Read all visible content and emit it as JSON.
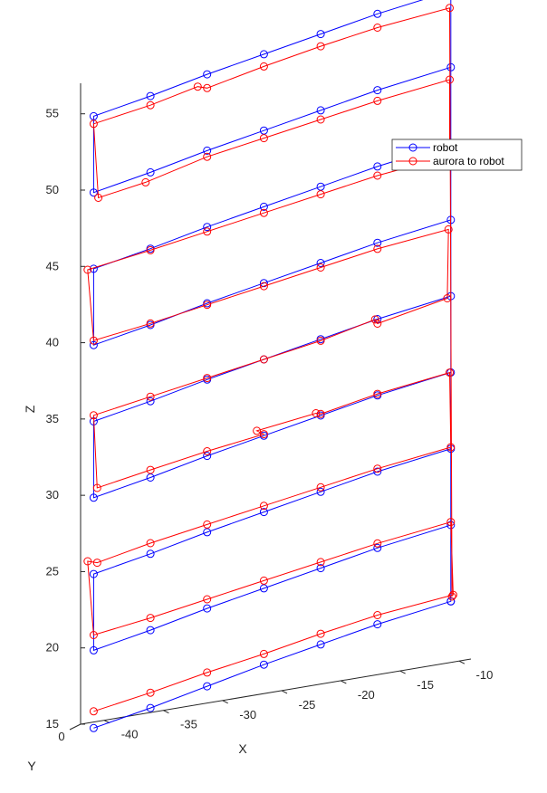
{
  "chart_data": {
    "type": "line",
    "projection": "3d",
    "xlabel": "X",
    "ylabel": "Y",
    "zlabel": "Z",
    "xlim": [
      -42,
      -9
    ],
    "zlim": [
      15,
      57
    ],
    "x_ticks": [
      -40,
      -35,
      -30,
      -25,
      -20,
      -15,
      -10
    ],
    "x_tick_labels": [
      "-40",
      "-35",
      "-30",
      "-25",
      "-20",
      "-15",
      "-10"
    ],
    "y_ticks": [
      0
    ],
    "y_tick_labels": [
      "0"
    ],
    "z_ticks": [
      15,
      20,
      25,
      30,
      35,
      40,
      45,
      50,
      55
    ],
    "z_tick_labels": [
      "15",
      "20",
      "25",
      "30",
      "35",
      "40",
      "45",
      "50",
      "55"
    ],
    "grid": false,
    "legend_position": "upper-right",
    "legend": [
      {
        "name": "robot",
        "color": "#0000ff"
      },
      {
        "name": "aurora to robot",
        "color": "#ff0000"
      }
    ],
    "series": [
      {
        "name": "robot",
        "color": "#0000ff",
        "marker": "circle",
        "points": [
          {
            "x": -40.9,
            "z": 14.6
          },
          {
            "x": -36.1,
            "z": 15.3
          },
          {
            "x": -31.3,
            "z": 16.1
          },
          {
            "x": -26.5,
            "z": 16.9
          },
          {
            "x": -21.7,
            "z": 17.6
          },
          {
            "x": -16.9,
            "z": 18.3
          },
          {
            "x": -10.7,
            "z": 19.0
          },
          {
            "x": -10.7,
            "z": 24.0
          },
          {
            "x": -16.9,
            "z": 23.3
          },
          {
            "x": -21.7,
            "z": 22.6
          },
          {
            "x": -26.5,
            "z": 21.9
          },
          {
            "x": -31.3,
            "z": 21.2
          },
          {
            "x": -36.1,
            "z": 20.4
          },
          {
            "x": -40.9,
            "z": 19.7
          },
          {
            "x": -40.9,
            "z": 24.7
          },
          {
            "x": -36.1,
            "z": 25.4
          },
          {
            "x": -31.3,
            "z": 26.2
          },
          {
            "x": -26.5,
            "z": 26.9
          },
          {
            "x": -21.7,
            "z": 27.6
          },
          {
            "x": -16.9,
            "z": 28.3
          },
          {
            "x": -10.7,
            "z": 29.0
          },
          {
            "x": -10.7,
            "z": 34.0
          },
          {
            "x": -16.9,
            "z": 33.3
          },
          {
            "x": -21.7,
            "z": 32.6
          },
          {
            "x": -26.5,
            "z": 31.9
          },
          {
            "x": -31.3,
            "z": 31.2
          },
          {
            "x": -36.1,
            "z": 30.4
          },
          {
            "x": -40.9,
            "z": 29.7
          },
          {
            "x": -40.9,
            "z": 34.7
          },
          {
            "x": -36.1,
            "z": 35.4
          },
          {
            "x": -31.3,
            "z": 36.2
          },
          {
            "x": -26.5,
            "z": 36.9
          },
          {
            "x": -21.7,
            "z": 37.6
          },
          {
            "x": -16.9,
            "z": 38.3
          },
          {
            "x": -10.7,
            "z": 39.0
          },
          {
            "x": -10.7,
            "z": 44.0
          },
          {
            "x": -16.9,
            "z": 43.3
          },
          {
            "x": -21.7,
            "z": 42.6
          },
          {
            "x": -26.5,
            "z": 41.9
          },
          {
            "x": -31.3,
            "z": 41.2
          },
          {
            "x": -36.1,
            "z": 40.4
          },
          {
            "x": -40.9,
            "z": 39.7
          },
          {
            "x": -40.9,
            "z": 44.7
          },
          {
            "x": -36.1,
            "z": 45.4
          },
          {
            "x": -31.3,
            "z": 46.2
          },
          {
            "x": -26.5,
            "z": 46.9
          },
          {
            "x": -21.7,
            "z": 47.6
          },
          {
            "x": -16.9,
            "z": 48.3
          },
          {
            "x": -10.7,
            "z": 49.0
          },
          {
            "x": -10.7,
            "z": 54.0
          },
          {
            "x": -16.9,
            "z": 53.3
          },
          {
            "x": -21.7,
            "z": 52.6
          },
          {
            "x": -26.5,
            "z": 51.9
          },
          {
            "x": -31.3,
            "z": 51.2
          },
          {
            "x": -36.1,
            "z": 50.4
          },
          {
            "x": -40.9,
            "z": 49.7
          },
          {
            "x": -40.9,
            "z": 54.7
          },
          {
            "x": -36.1,
            "z": 55.4
          },
          {
            "x": -31.3,
            "z": 56.2
          },
          {
            "x": -26.5,
            "z": 56.9
          },
          {
            "x": -21.7,
            "z": 57.6
          },
          {
            "x": -16.9,
            "z": 58.3
          },
          {
            "x": -10.7,
            "z": 59.0
          },
          {
            "x": -10.7,
            "z": 19.0
          }
        ]
      },
      {
        "name": "aurora to robot",
        "color": "#ff0000",
        "marker": "circle",
        "points": [
          {
            "x": -40.9,
            "z": 15.7
          },
          {
            "x": -36.1,
            "z": 16.3
          },
          {
            "x": -31.3,
            "z": 17.0
          },
          {
            "x": -26.5,
            "z": 17.6
          },
          {
            "x": -21.7,
            "z": 18.3
          },
          {
            "x": -16.9,
            "z": 18.9
          },
          {
            "x": -10.5,
            "z": 19.4
          },
          {
            "x": -10.7,
            "z": 24.2
          },
          {
            "x": -16.9,
            "z": 23.6
          },
          {
            "x": -21.7,
            "z": 23.0
          },
          {
            "x": -26.5,
            "z": 22.4
          },
          {
            "x": -31.3,
            "z": 21.8
          },
          {
            "x": -36.1,
            "z": 21.2
          },
          {
            "x": -40.9,
            "z": 20.7
          },
          {
            "x": -41.4,
            "z": 25.6
          },
          {
            "x": -40.6,
            "z": 25.4
          },
          {
            "x": -36.1,
            "z": 26.1
          },
          {
            "x": -31.3,
            "z": 26.7
          },
          {
            "x": -26.5,
            "z": 27.3
          },
          {
            "x": -21.7,
            "z": 27.9
          },
          {
            "x": -16.9,
            "z": 28.5
          },
          {
            "x": -10.7,
            "z": 29.1
          },
          {
            "x": -10.8,
            "z": 34.0
          },
          {
            "x": -16.9,
            "z": 33.4
          },
          {
            "x": -21.7,
            "z": 32.7
          },
          {
            "x": -22.1,
            "z": 32.8
          },
          {
            "x": -27.1,
            "z": 32.3
          },
          {
            "x": -26.5,
            "z": 32.0
          },
          {
            "x": -31.3,
            "z": 31.5
          },
          {
            "x": -36.1,
            "z": 30.9
          },
          {
            "x": -40.6,
            "z": 30.3
          },
          {
            "x": -40.9,
            "z": 35.1
          },
          {
            "x": -36.1,
            "z": 35.7
          },
          {
            "x": -31.3,
            "z": 36.3
          },
          {
            "x": -26.5,
            "z": 36.9
          },
          {
            "x": -21.7,
            "z": 37.5
          },
          {
            "x": -17.1,
            "z": 38.3
          },
          {
            "x": -16.9,
            "z": 38.0
          },
          {
            "x": -11.0,
            "z": 38.9
          },
          {
            "x": -10.9,
            "z": 43.4
          },
          {
            "x": -16.9,
            "z": 42.9
          },
          {
            "x": -21.7,
            "z": 42.3
          },
          {
            "x": -26.5,
            "z": 41.7
          },
          {
            "x": -31.3,
            "z": 41.1
          },
          {
            "x": -36.1,
            "z": 40.5
          },
          {
            "x": -40.9,
            "z": 40.0
          },
          {
            "x": -41.4,
            "z": 44.7
          },
          {
            "x": -36.1,
            "z": 45.3
          },
          {
            "x": -31.3,
            "z": 45.9
          },
          {
            "x": -26.5,
            "z": 46.5
          },
          {
            "x": -21.7,
            "z": 47.1
          },
          {
            "x": -16.9,
            "z": 47.7
          },
          {
            "x": -10.8,
            "z": 48.2
          },
          {
            "x": -10.8,
            "z": 53.2
          },
          {
            "x": -16.9,
            "z": 52.6
          },
          {
            "x": -21.7,
            "z": 52.0
          },
          {
            "x": -26.5,
            "z": 51.4
          },
          {
            "x": -31.3,
            "z": 50.8
          },
          {
            "x": -36.5,
            "z": 49.8
          },
          {
            "x": -40.5,
            "z": 49.3
          },
          {
            "x": -40.9,
            "z": 54.2
          },
          {
            "x": -36.1,
            "z": 54.8
          },
          {
            "x": -32.1,
            "z": 55.5
          },
          {
            "x": -31.3,
            "z": 55.3
          },
          {
            "x": -26.5,
            "z": 56.1
          },
          {
            "x": -21.7,
            "z": 56.8
          },
          {
            "x": -16.9,
            "z": 57.4
          },
          {
            "x": -10.8,
            "z": 57.9
          },
          {
            "x": -10.6,
            "z": 19.3
          }
        ]
      }
    ]
  }
}
